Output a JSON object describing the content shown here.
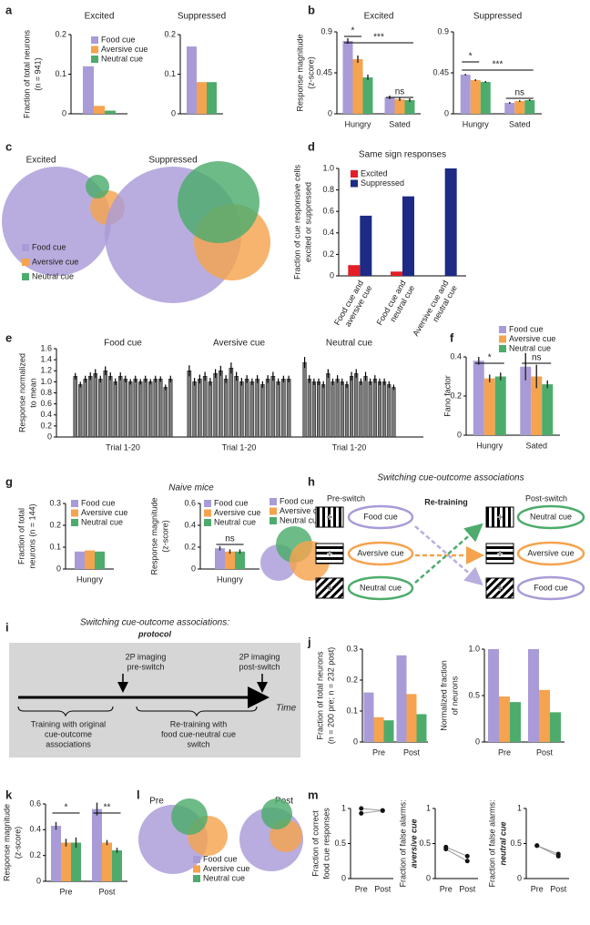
{
  "panel_labels": [
    "a",
    "b",
    "c",
    "d",
    "e",
    "f",
    "g",
    "h",
    "i",
    "j",
    "k",
    "l",
    "m"
  ],
  "naive_mice_title": "Naive mice",
  "venns": [
    {
      "title": "Excited"
    },
    {
      "title": "Suppressed"
    },
    {
      "title": "Pre"
    },
    {
      "title": "Post"
    }
  ],
  "venn_legends": [
    [
      "Food cue",
      "Aversive cue",
      "Neutral cue"
    ],
    [
      "Food cue",
      "Aversive cue",
      "Neutral cue"
    ],
    [
      "Food cue",
      "Aversive cue",
      "Neutral cue"
    ]
  ],
  "switching": {
    "title": "Switching cue-outcome associations",
    "pre": "Pre-switch",
    "middle": "Re-training",
    "post": "Post-switch",
    "pre_cues": [
      "Food cue",
      "Aversive cue",
      "Neutral cue"
    ],
    "post_cues": [
      "Neutral cue",
      "Aversive cue",
      "Food cue"
    ]
  },
  "protocol": {
    "title": "Switching cue-outcome associations:",
    "subtitle": "protocol",
    "imaging_pre": [
      "2P imaging",
      "pre-switch"
    ],
    "imaging_post": [
      "2P imaging",
      "post-switch"
    ],
    "training": [
      "Training with original",
      "cue-outcome",
      "associations"
    ],
    "retraining": [
      "Re-training with",
      "food cue-neutral cue",
      "switch"
    ],
    "time": "Time"
  },
  "chart_data": [
    {
      "type": "bar",
      "title": "Excited",
      "ylabel": [
        "Fraction of total neurons",
        "(n = 941)"
      ],
      "categories": [
        null
      ],
      "series": [
        {
          "name": "Food cue",
          "color": "#a99bd8",
          "values": [
            0.12
          ]
        },
        {
          "name": "Aversive cue",
          "color": "#f5a34e",
          "values": [
            0.02
          ]
        },
        {
          "name": "Neutral cue",
          "color": "#4dac6c",
          "values": [
            0.008
          ]
        }
      ],
      "ylim": [
        0,
        0.2
      ],
      "yticks": [
        0,
        0.1,
        0.2
      ]
    },
    {
      "type": "bar",
      "title": "Suppressed",
      "categories": [
        null
      ],
      "series": [
        {
          "color": "#a99bd8",
          "values": [
            0.17
          ]
        },
        {
          "color": "#f5a34e",
          "values": [
            0.08
          ]
        },
        {
          "color": "#4dac6c",
          "values": [
            0.08
          ]
        }
      ],
      "ylim": [
        0,
        0.2
      ],
      "yticks": [
        0,
        0.1,
        0.2
      ]
    },
    {
      "type": "bar",
      "title": "Excited",
      "ylabel": [
        "Response magnitude",
        "(z-score)"
      ],
      "categories": [
        "Hungry",
        "Sated"
      ],
      "series": [
        {
          "color": "#a99bd8",
          "values": [
            0.8,
            0.18
          ],
          "errors": [
            0.03,
            0.02
          ]
        },
        {
          "color": "#f5a34e",
          "values": [
            0.6,
            0.16
          ],
          "errors": [
            0.04,
            0.02
          ]
        },
        {
          "color": "#4dac6c",
          "values": [
            0.4,
            0.15
          ],
          "errors": [
            0.03,
            0.02
          ]
        }
      ],
      "ylim": [
        0,
        0.9
      ],
      "yticks": [
        0,
        0.45,
        0.9
      ],
      "annotations": [
        "*",
        "***",
        "ns"
      ]
    },
    {
      "type": "bar",
      "title": "Suppressed",
      "categories": [
        "Hungry",
        "Sated"
      ],
      "series": [
        {
          "color": "#a99bd8",
          "values": [
            0.43,
            0.12
          ],
          "errors": [
            0.01,
            0.01
          ]
        },
        {
          "color": "#f5a34e",
          "values": [
            0.37,
            0.14
          ],
          "errors": [
            0.01,
            0.01
          ]
        },
        {
          "color": "#4dac6c",
          "values": [
            0.35,
            0.15
          ],
          "errors": [
            0.01,
            0.01
          ]
        }
      ],
      "ylim": [
        0,
        0.9
      ],
      "yticks": [
        0,
        0.45,
        0.9
      ],
      "annotations": [
        "*",
        "***",
        "ns"
      ]
    },
    {
      "type": "bar",
      "title": "Same sign responses",
      "ylabel": [
        "Fraction of cue responsive cells",
        "excited or suppressed"
      ],
      "categories": [
        [
          "Food cue and",
          "aversive cue"
        ],
        [
          "Food cue and",
          "neutral cue"
        ],
        [
          "Aversive cue and",
          "neutral cue"
        ]
      ],
      "series": [
        {
          "name": "Excited",
          "color": "#e41e26",
          "values": [
            0.1,
            0.04,
            0
          ]
        },
        {
          "name": "Suppressed",
          "color": "#1d2a86",
          "values": [
            0.56,
            0.74,
            1
          ]
        }
      ],
      "ylim": [
        0,
        1
      ],
      "yticks": [
        0,
        0.2,
        0.4,
        0.6,
        0.8,
        {
          "value": 1,
          "label": "1.0"
        }
      ]
    },
    {
      "type": "bar",
      "ylabel": [
        "Response normalized",
        "to mean"
      ],
      "color": "#7a7a7a",
      "groups": [
        {
          "title": "Food cue",
          "xlabel": "Trial 1-20",
          "values": [
            1.1,
            0.95,
            1.05,
            1.1,
            1.15,
            1.05,
            1.2,
            1.1,
            1.0,
            1.1,
            1.05,
            1.0,
            1.05,
            1.0,
            1.05,
            1.0,
            1.05,
            1.05,
            0.9,
            1.05
          ],
          "errors": [
            0.06,
            0.05,
            0.06,
            0.07,
            0.08,
            0.06,
            0.08,
            0.07,
            0.06,
            0.07,
            0.06,
            0.05,
            0.06,
            0.05,
            0.06,
            0.05,
            0.06,
            0.05,
            0.05,
            0.06
          ]
        },
        {
          "title": "Aversive cue",
          "xlabel": "Trial 1-20",
          "values": [
            1.2,
            1.0,
            1.05,
            1.1,
            1.0,
            1.15,
            1.2,
            1.05,
            1.25,
            1.1,
            1.0,
            1.05,
            1.0,
            1.05,
            0.95,
            1.05,
            1.1,
            1.0,
            1.05,
            1.05
          ],
          "errors": [
            0.1,
            0.07,
            0.08,
            0.08,
            0.07,
            0.08,
            0.09,
            0.07,
            0.1,
            0.08,
            0.07,
            0.07,
            0.06,
            0.07,
            0.06,
            0.07,
            0.08,
            0.06,
            0.06,
            0.06
          ]
        },
        {
          "title": "Neutral cue",
          "xlabel": "Trial 1-20",
          "values": [
            1.35,
            1.05,
            1.0,
            1.0,
            0.95,
            1.15,
            1.0,
            1.05,
            1.0,
            0.95,
            1.1,
            1.15,
            1.0,
            1.1,
            1.0,
            1.05,
            1.0,
            1.0,
            0.95,
            0.9
          ],
          "errors": [
            0.1,
            0.07,
            0.06,
            0.06,
            0.06,
            0.08,
            0.06,
            0.07,
            0.06,
            0.06,
            0.08,
            0.08,
            0.06,
            0.08,
            0.06,
            0.07,
            0.06,
            0.06,
            0.06,
            0.05
          ]
        }
      ],
      "ylim": [
        0,
        1.6
      ],
      "yticks": [
        0,
        0.2,
        0.4,
        0.6,
        0.8,
        {
          "value": 1,
          "label": "1.0"
        },
        1.2,
        1.4,
        1.6
      ]
    },
    {
      "type": "bar",
      "ylabel": [
        "Fano factor"
      ],
      "categories": [
        "Hungry",
        "Sated"
      ],
      "series": [
        {
          "name": "Food cue",
          "color": "#a99bd8",
          "values": [
            0.38,
            0.35
          ],
          "errors": [
            0.02,
            0.07
          ]
        },
        {
          "name": "Aversive cue",
          "color": "#f5a34e",
          "values": [
            0.29,
            0.3
          ],
          "errors": [
            0.02,
            0.06
          ]
        },
        {
          "name": "Neutral cue",
          "color": "#4dac6c",
          "values": [
            0.3,
            0.26
          ],
          "errors": [
            0.02,
            0.02
          ]
        }
      ],
      "ylim": [
        0,
        0.4
      ],
      "yticks": [
        0,
        0.2,
        0.4
      ],
      "annotations": [
        "*",
        "ns"
      ]
    },
    {
      "type": "bar",
      "ylabel": [
        "Fraction of total",
        "neurons (n = 144)"
      ],
      "categories": [
        "Hungry"
      ],
      "series": [
        {
          "name": "Food cue",
          "color": "#a99bd8",
          "values": [
            0.08
          ]
        },
        {
          "name": "Aversive cue",
          "color": "#f5a34e",
          "values": [
            0.085
          ]
        },
        {
          "name": "Neutral cue",
          "color": "#4dac6c",
          "values": [
            0.08
          ]
        }
      ],
      "ylim": [
        0,
        0.3
      ],
      "yticks": [
        0,
        0.1,
        0.2,
        0.3
      ]
    },
    {
      "type": "bar",
      "ylabel": [
        "Response magnitude",
        "(z-score)"
      ],
      "categories": [
        "Hungry"
      ],
      "series": [
        {
          "name": "Food cue",
          "color": "#a99bd8",
          "values": [
            0.19
          ],
          "errors": [
            0.02
          ]
        },
        {
          "name": "Aversive cue",
          "color": "#f5a34e",
          "values": [
            0.16
          ],
          "errors": [
            0.02
          ]
        },
        {
          "name": "Neutral cue",
          "color": "#4dac6c",
          "values": [
            0.16
          ],
          "errors": [
            0.02
          ]
        }
      ],
      "ylim": [
        0,
        0.6
      ],
      "yticks": [
        0,
        0.2,
        0.4,
        0.6
      ],
      "annotations": [
        "ns"
      ]
    },
    {
      "type": "bar",
      "ylabel": [
        "Fraction of total neurons",
        "(n = 200 pre; n = 232 post)"
      ],
      "categories": [
        "Pre",
        "Post"
      ],
      "series": [
        {
          "color": "#a99bd8",
          "values": [
            0.16,
            0.28
          ]
        },
        {
          "color": "#f5a34e",
          "values": [
            0.08,
            0.155
          ]
        },
        {
          "color": "#4dac6c",
          "values": [
            0.07,
            0.09
          ]
        }
      ],
      "ylim": [
        0,
        0.3
      ],
      "yticks": [
        0,
        0.1,
        0.2,
        0.3
      ]
    },
    {
      "type": "bar",
      "ylabel": [
        "Normalized fraction",
        "of neurons"
      ],
      "categories": [
        "Pre",
        "Post"
      ],
      "series": [
        {
          "color": "#a99bd8",
          "values": [
            1,
            1
          ]
        },
        {
          "color": "#f5a34e",
          "values": [
            0.49,
            0.56
          ]
        },
        {
          "color": "#4dac6c",
          "values": [
            0.43,
            0.32
          ]
        }
      ],
      "ylim": [
        0,
        1
      ],
      "yticks": [
        0,
        0.5,
        {
          "value": 1,
          "label": "1.0"
        }
      ]
    },
    {
      "type": "bar",
      "ylabel": [
        "Response magnitude",
        "(z-score)"
      ],
      "categories": [
        "Pre",
        "Post"
      ],
      "series": [
        {
          "color": "#a99bd8",
          "values": [
            0.43,
            0.56
          ],
          "errors": [
            0.03,
            0.05
          ]
        },
        {
          "color": "#f5a34e",
          "values": [
            0.3,
            0.3
          ],
          "errors": [
            0.03,
            0.02
          ]
        },
        {
          "color": "#4dac6c",
          "values": [
            0.3,
            0.24
          ],
          "errors": [
            0.04,
            0.02
          ]
        }
      ],
      "ylim": [
        0,
        0.6
      ],
      "yticks": [
        0,
        0.2,
        0.4,
        0.6
      ],
      "annotations": [
        "*",
        "**"
      ]
    },
    {
      "type": "line",
      "ylabel": [
        "Fraction of correct",
        "food cue responses"
      ],
      "categories": [
        "Pre",
        "Post"
      ],
      "color": "#999999",
      "series": [
        {
          "values": [
            1,
            0.97
          ]
        },
        {
          "values": [
            0.93,
            0.97
          ]
        }
      ],
      "ylim": [
        0,
        1
      ],
      "yticks": [
        0,
        0.5,
        1
      ]
    },
    {
      "type": "line",
      "ylabel": [
        "Fraction of false alarms:",
        "aversive cue"
      ],
      "categories": [
        "Pre",
        "Post"
      ],
      "color": "#999999",
      "series": [
        {
          "values": [
            0.45,
            0.32
          ]
        },
        {
          "values": [
            0.42,
            0.25
          ]
        }
      ],
      "ylim": [
        0,
        1
      ],
      "yticks": [
        0,
        0.5,
        1
      ]
    },
    {
      "type": "line",
      "ylabel": [
        "Fraction of false alarms:",
        "neutral cue"
      ],
      "categories": [
        "Pre",
        "Post"
      ],
      "color": "#999999",
      "series": [
        {
          "values": [
            0.47,
            0.35
          ]
        },
        {
          "values": [
            0.47,
            0.32
          ]
        }
      ],
      "ylim": [
        0,
        1
      ],
      "yticks": [
        0,
        0.5,
        1
      ]
    }
  ]
}
